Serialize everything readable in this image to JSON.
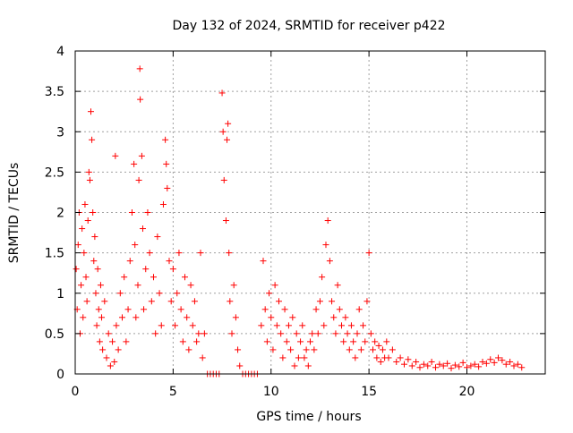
{
  "chart_data": {
    "type": "scatter",
    "title": "Day 132 of 2024, SRMTID for receiver p422",
    "xlabel": "GPS time / hours",
    "ylabel": "SRMTID / TECUs",
    "xlim": [
      0,
      24
    ],
    "ylim": [
      0,
      4
    ],
    "xticks": [
      0,
      5,
      10,
      15,
      20
    ],
    "yticks": [
      0,
      0.5,
      1,
      1.5,
      2,
      2.5,
      3,
      3.5,
      4
    ],
    "grid": true,
    "marker": "+",
    "color": "#ff0000",
    "series": [
      {
        "name": "SRMTID",
        "points": [
          [
            0.05,
            1.3
          ],
          [
            0.1,
            0.8
          ],
          [
            0.15,
            1.6
          ],
          [
            0.2,
            2.0
          ],
          [
            0.25,
            0.5
          ],
          [
            0.3,
            1.1
          ],
          [
            0.35,
            1.8
          ],
          [
            0.4,
            0.7
          ],
          [
            0.45,
            1.5
          ],
          [
            0.5,
            2.1
          ],
          [
            0.55,
            1.2
          ],
          [
            0.6,
            0.9
          ],
          [
            0.65,
            1.9
          ],
          [
            0.7,
            2.5
          ],
          [
            0.75,
            2.4
          ],
          [
            0.8,
            3.25
          ],
          [
            0.85,
            2.9
          ],
          [
            0.9,
            2.0
          ],
          [
            0.95,
            1.4
          ],
          [
            1.0,
            1.7
          ],
          [
            1.05,
            1.0
          ],
          [
            1.1,
            0.6
          ],
          [
            1.15,
            1.3
          ],
          [
            1.2,
            0.8
          ],
          [
            1.25,
            0.4
          ],
          [
            1.3,
            1.1
          ],
          [
            1.35,
            0.7
          ],
          [
            1.4,
            0.3
          ],
          [
            1.5,
            0.9
          ],
          [
            1.6,
            0.2
          ],
          [
            1.7,
            0.5
          ],
          [
            1.8,
            0.1
          ],
          [
            1.9,
            0.4
          ],
          [
            2.0,
            0.15
          ],
          [
            2.05,
            2.7
          ],
          [
            2.1,
            0.6
          ],
          [
            2.2,
            0.3
          ],
          [
            2.3,
            1.0
          ],
          [
            2.4,
            0.7
          ],
          [
            2.5,
            1.2
          ],
          [
            2.6,
            0.4
          ],
          [
            2.7,
            0.8
          ],
          [
            2.8,
            1.4
          ],
          [
            2.9,
            2.0
          ],
          [
            3.0,
            2.6
          ],
          [
            3.05,
            1.6
          ],
          [
            3.1,
            0.7
          ],
          [
            3.2,
            1.1
          ],
          [
            3.25,
            2.4
          ],
          [
            3.3,
            3.78
          ],
          [
            3.32,
            3.4
          ],
          [
            3.4,
            2.7
          ],
          [
            3.45,
            1.8
          ],
          [
            3.5,
            0.8
          ],
          [
            3.6,
            1.3
          ],
          [
            3.7,
            2.0
          ],
          [
            3.8,
            1.5
          ],
          [
            3.9,
            0.9
          ],
          [
            4.0,
            1.2
          ],
          [
            4.1,
            0.5
          ],
          [
            4.2,
            1.7
          ],
          [
            4.3,
            1.0
          ],
          [
            4.4,
            0.6
          ],
          [
            4.5,
            2.1
          ],
          [
            4.6,
            2.9
          ],
          [
            4.65,
            2.6
          ],
          [
            4.7,
            2.3
          ],
          [
            4.8,
            1.4
          ],
          [
            4.9,
            0.9
          ],
          [
            5.0,
            1.3
          ],
          [
            5.1,
            0.6
          ],
          [
            5.2,
            1.0
          ],
          [
            5.3,
            1.5
          ],
          [
            5.4,
            0.8
          ],
          [
            5.5,
            0.4
          ],
          [
            5.6,
            1.2
          ],
          [
            5.7,
            0.7
          ],
          [
            5.8,
            0.3
          ],
          [
            5.9,
            1.1
          ],
          [
            6.0,
            0.6
          ],
          [
            6.1,
            0.9
          ],
          [
            6.2,
            0.4
          ],
          [
            6.3,
            0.5
          ],
          [
            6.4,
            1.5
          ],
          [
            6.5,
            0.2
          ],
          [
            6.6,
            0.5
          ],
          [
            6.75,
            0
          ],
          [
            6.9,
            0
          ],
          [
            7.05,
            0
          ],
          [
            7.2,
            0
          ],
          [
            7.35,
            0
          ],
          [
            7.5,
            3.48
          ],
          [
            7.55,
            3.0
          ],
          [
            7.6,
            2.4
          ],
          [
            7.7,
            1.9
          ],
          [
            7.75,
            2.9
          ],
          [
            7.8,
            3.1
          ],
          [
            7.85,
            1.5
          ],
          [
            7.9,
            0.9
          ],
          [
            8.0,
            0.5
          ],
          [
            8.1,
            1.1
          ],
          [
            8.2,
            0.7
          ],
          [
            8.3,
            0.3
          ],
          [
            8.4,
            0.1
          ],
          [
            8.55,
            0
          ],
          [
            8.7,
            0
          ],
          [
            8.85,
            0
          ],
          [
            9.0,
            0
          ],
          [
            9.15,
            0
          ],
          [
            9.3,
            0
          ],
          [
            9.5,
            0.6
          ],
          [
            9.6,
            1.4
          ],
          [
            9.7,
            0.8
          ],
          [
            9.8,
            0.4
          ],
          [
            9.9,
            1.0
          ],
          [
            10.0,
            0.7
          ],
          [
            10.1,
            0.3
          ],
          [
            10.2,
            1.1
          ],
          [
            10.3,
            0.6
          ],
          [
            10.4,
            0.9
          ],
          [
            10.5,
            0.5
          ],
          [
            10.6,
            0.2
          ],
          [
            10.7,
            0.8
          ],
          [
            10.8,
            0.4
          ],
          [
            10.9,
            0.6
          ],
          [
            11.0,
            0.3
          ],
          [
            11.1,
            0.7
          ],
          [
            11.2,
            0.1
          ],
          [
            11.3,
            0.5
          ],
          [
            11.4,
            0.2
          ],
          [
            11.5,
            0.4
          ],
          [
            11.6,
            0.6
          ],
          [
            11.7,
            0.2
          ],
          [
            11.8,
            0.3
          ],
          [
            11.9,
            0.1
          ],
          [
            12.0,
            0.4
          ],
          [
            12.1,
            0.5
          ],
          [
            12.2,
            0.3
          ],
          [
            12.3,
            0.8
          ],
          [
            12.4,
            0.5
          ],
          [
            12.5,
            0.9
          ],
          [
            12.6,
            1.2
          ],
          [
            12.7,
            0.6
          ],
          [
            12.8,
            1.6
          ],
          [
            12.9,
            1.9
          ],
          [
            13.0,
            1.4
          ],
          [
            13.1,
            0.9
          ],
          [
            13.2,
            0.7
          ],
          [
            13.3,
            0.5
          ],
          [
            13.4,
            1.1
          ],
          [
            13.5,
            0.8
          ],
          [
            13.6,
            0.6
          ],
          [
            13.7,
            0.4
          ],
          [
            13.8,
            0.7
          ],
          [
            13.9,
            0.5
          ],
          [
            14.0,
            0.3
          ],
          [
            14.1,
            0.6
          ],
          [
            14.2,
            0.4
          ],
          [
            14.3,
            0.2
          ],
          [
            14.4,
            0.5
          ],
          [
            14.5,
            0.8
          ],
          [
            14.6,
            0.3
          ],
          [
            14.7,
            0.6
          ],
          [
            14.8,
            0.4
          ],
          [
            14.9,
            0.9
          ],
          [
            15.0,
            1.5
          ],
          [
            15.1,
            0.5
          ],
          [
            15.2,
            0.3
          ],
          [
            15.3,
            0.4
          ],
          [
            15.4,
            0.2
          ],
          [
            15.5,
            0.35
          ],
          [
            15.6,
            0.15
          ],
          [
            15.7,
            0.3
          ],
          [
            15.8,
            0.2
          ],
          [
            15.9,
            0.4
          ],
          [
            16.0,
            0.2
          ],
          [
            16.2,
            0.3
          ],
          [
            16.4,
            0.15
          ],
          [
            16.6,
            0.2
          ],
          [
            16.8,
            0.12
          ],
          [
            17.0,
            0.18
          ],
          [
            17.2,
            0.1
          ],
          [
            17.4,
            0.15
          ],
          [
            17.6,
            0.08
          ],
          [
            17.8,
            0.12
          ],
          [
            18.0,
            0.1
          ],
          [
            18.2,
            0.15
          ],
          [
            18.4,
            0.08
          ],
          [
            18.6,
            0.12
          ],
          [
            18.8,
            0.1
          ],
          [
            19.0,
            0.13
          ],
          [
            19.2,
            0.07
          ],
          [
            19.4,
            0.11
          ],
          [
            19.6,
            0.09
          ],
          [
            19.8,
            0.14
          ],
          [
            20.0,
            0.08
          ],
          [
            20.2,
            0.1
          ],
          [
            20.4,
            0.12
          ],
          [
            20.6,
            0.09
          ],
          [
            20.8,
            0.15
          ],
          [
            21.0,
            0.13
          ],
          [
            21.2,
            0.18
          ],
          [
            21.4,
            0.14
          ],
          [
            21.6,
            0.2
          ],
          [
            21.8,
            0.17
          ],
          [
            22.0,
            0.12
          ],
          [
            22.2,
            0.15
          ],
          [
            22.4,
            0.1
          ],
          [
            22.6,
            0.12
          ],
          [
            22.8,
            0.08
          ]
        ]
      }
    ]
  }
}
